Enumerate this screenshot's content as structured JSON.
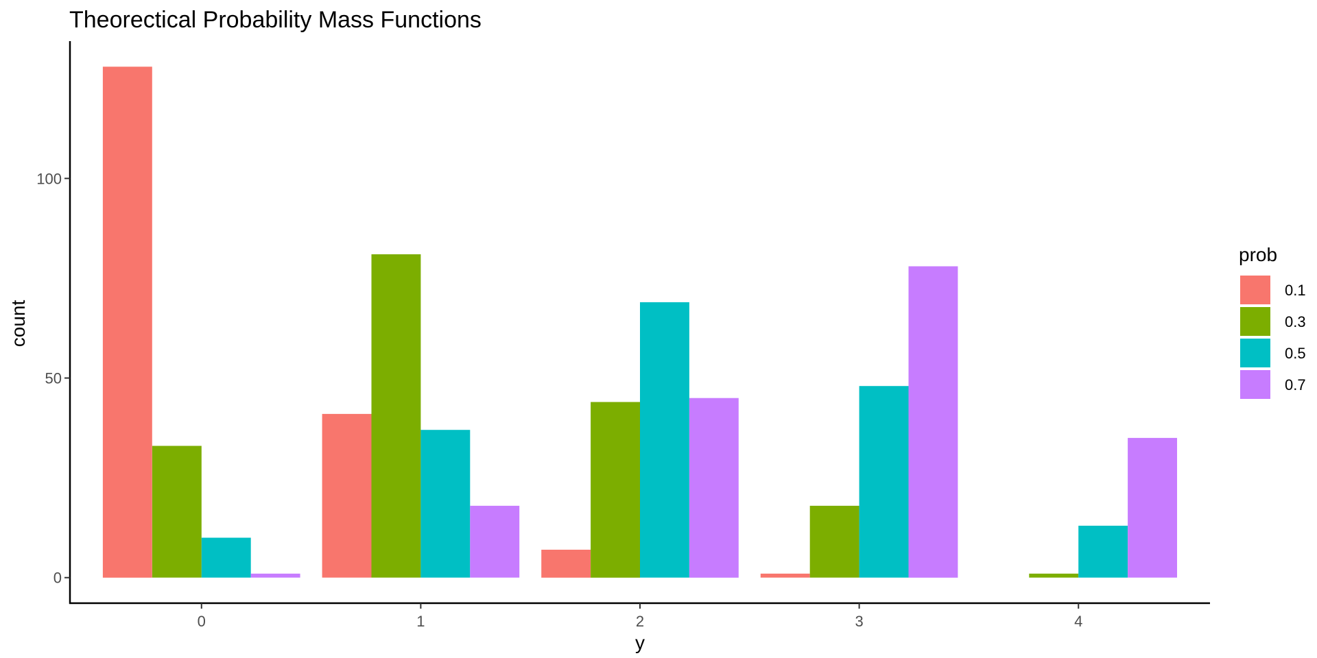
{
  "chart_data": {
    "type": "bar",
    "title": "Theorectical Probability Mass Functions",
    "xlabel": "y",
    "ylabel": "count",
    "categories": [
      "0",
      "1",
      "2",
      "3",
      "4"
    ],
    "series": [
      {
        "name": "0.1",
        "color": "#F8766D",
        "values": [
          128,
          41,
          7,
          1,
          0
        ]
      },
      {
        "name": "0.3",
        "color": "#7CAE00",
        "values": [
          33,
          81,
          44,
          18,
          1
        ]
      },
      {
        "name": "0.5",
        "color": "#00BFC4",
        "values": [
          10,
          37,
          69,
          48,
          13
        ]
      },
      {
        "name": "0.7",
        "color": "#C77CFF",
        "values": [
          1,
          18,
          45,
          78,
          35
        ]
      }
    ],
    "y_ticks": [
      0,
      50,
      100
    ],
    "ylim": [
      -6.4,
      134.4
    ],
    "legend": {
      "title": "prob",
      "position": "right"
    },
    "grid": false
  }
}
